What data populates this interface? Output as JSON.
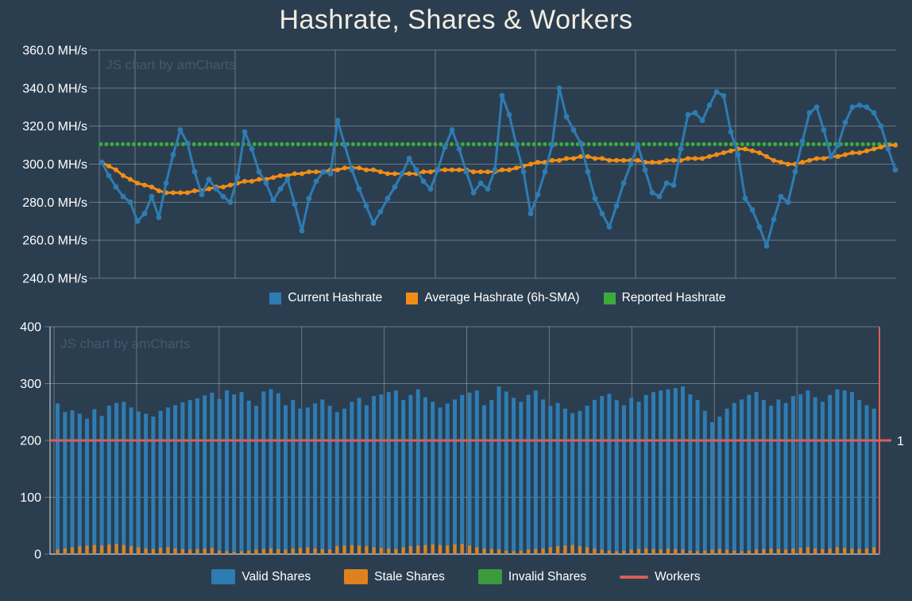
{
  "page": {
    "title": "Hashrate, Shares & Workers",
    "background_color": "#2b3e50",
    "title_color": "#f2ede1"
  },
  "colors": {
    "blue": "#2e7cb2",
    "orange_line": "#f28d15",
    "orange_bar": "#e0811f",
    "green": "#3cab3c",
    "red": "#d95f57",
    "grid": "rgba(255,255,255,0.30)",
    "axis_line": "rgba(255,255,255,0.55)",
    "axis_text": "#ffffff",
    "watermark": "#46586b"
  },
  "chart_data": [
    {
      "id": "hashrate",
      "type": "line",
      "watermark": "JS chart by amCharts",
      "y_axis": {
        "unit": "MH/s",
        "min": 240,
        "max": 360,
        "tick_step": 20,
        "tick_labels": [
          "360.0 MH/s",
          "340.0 MH/s",
          "320.0 MH/s",
          "300.0 MH/s",
          "280.0 MH/s",
          "260.0 MH/s",
          "240.0 MH/s"
        ]
      },
      "x_count": 112,
      "grid": "on",
      "legend_position": "bottom",
      "series": [
        {
          "name": "Current Hashrate",
          "color": "#2e7cb2",
          "style": "line-with-markers",
          "values": [
            301,
            294,
            288,
            283,
            280,
            270,
            274,
            283,
            272,
            290,
            305,
            318,
            311,
            296,
            284,
            292,
            287,
            283,
            280,
            293,
            317,
            308,
            296,
            290,
            281,
            287,
            292,
            279,
            265,
            282,
            291,
            296,
            295,
            323,
            310,
            297,
            287,
            278,
            269,
            275,
            282,
            288,
            295,
            303,
            297,
            291,
            287,
            297,
            309,
            318,
            308,
            296,
            285,
            290,
            287,
            297,
            336,
            326,
            310,
            296,
            274,
            284,
            296,
            310,
            340,
            325,
            318,
            311,
            296,
            282,
            274,
            267,
            278,
            290,
            300,
            310,
            297,
            285,
            283,
            290,
            289,
            308,
            326,
            327,
            323,
            331,
            338,
            336,
            317,
            305,
            282,
            276,
            267,
            257,
            271,
            283,
            280,
            296,
            312,
            327,
            330,
            318,
            304,
            310,
            322,
            330,
            331,
            330,
            327,
            320,
            308,
            297
          ]
        },
        {
          "name": "Average Hashrate (6h-SMA)",
          "color": "#f28d15",
          "style": "line-with-markers",
          "values": [
            301,
            299,
            297,
            294,
            292,
            290,
            289,
            288,
            286,
            285,
            285,
            285,
            285,
            286,
            286,
            287,
            288,
            288,
            289,
            290,
            291,
            291,
            292,
            292,
            293,
            294,
            294,
            295,
            295,
            296,
            296,
            296,
            297,
            297,
            298,
            298,
            298,
            297,
            297,
            296,
            295,
            295,
            295,
            295,
            295,
            296,
            296,
            297,
            297,
            297,
            297,
            297,
            296,
            296,
            296,
            296,
            297,
            297,
            298,
            299,
            300,
            301,
            301,
            302,
            302,
            303,
            303,
            304,
            304,
            303,
            303,
            302,
            302,
            302,
            302,
            302,
            301,
            301,
            301,
            302,
            302,
            302,
            303,
            303,
            303,
            304,
            305,
            306,
            307,
            308,
            308,
            307,
            306,
            304,
            302,
            301,
            300,
            300,
            301,
            302,
            303,
            303,
            304,
            304,
            305,
            306,
            306,
            307,
            308,
            309,
            310,
            310
          ]
        },
        {
          "name": "Reported Hashrate",
          "color": "#3cab3c",
          "style": "dotted",
          "constant": 310.5
        }
      ]
    },
    {
      "id": "shares",
      "type": "bar",
      "watermark": "JS chart by amCharts",
      "y_axis_left": {
        "min": 0,
        "max": 400,
        "tick_labels": [
          "400",
          "300",
          "200",
          "100",
          "0"
        ]
      },
      "y_axis_right": {
        "color": "#d95f57",
        "tick_labels": [
          "1"
        ],
        "tick_value_on_left_scale": 200
      },
      "x_count": 112,
      "grid": "on",
      "legend_position": "bottom",
      "series": [
        {
          "name": "Valid Shares",
          "color": "#2e7cb2",
          "style": "bar",
          "values": [
            265,
            250,
            253,
            247,
            238,
            255,
            243,
            261,
            266,
            268,
            258,
            251,
            247,
            242,
            252,
            258,
            262,
            267,
            271,
            274,
            279,
            284,
            273,
            288,
            281,
            285,
            270,
            261,
            286,
            290,
            283,
            262,
            271,
            256,
            258,
            265,
            272,
            261,
            250,
            256,
            268,
            275,
            262,
            278,
            281,
            285,
            288,
            271,
            280,
            290,
            276,
            268,
            258,
            265,
            272,
            280,
            284,
            288,
            262,
            271,
            295,
            286,
            275,
            268,
            280,
            288,
            272,
            261,
            266,
            256,
            248,
            252,
            261,
            271,
            278,
            282,
            271,
            262,
            275,
            268,
            280,
            285,
            288,
            290,
            292,
            295,
            281,
            271,
            252,
            232,
            242,
            256,
            266,
            272,
            280,
            285,
            271,
            261,
            272,
            266,
            278,
            281,
            288,
            276,
            268,
            280,
            290,
            288,
            285,
            271,
            262,
            256
          ]
        },
        {
          "name": "Stale Shares",
          "color": "#e0811f",
          "style": "bar",
          "values": [
            8,
            10,
            12,
            14,
            15,
            16,
            15,
            17,
            18,
            16,
            14,
            12,
            10,
            9,
            11,
            12,
            10,
            9,
            8,
            9,
            10,
            11,
            6,
            5,
            4,
            5,
            6,
            8,
            9,
            10,
            9,
            8,
            10,
            11,
            12,
            10,
            9,
            8,
            14,
            15,
            16,
            15,
            14,
            12,
            11,
            10,
            9,
            12,
            14,
            15,
            16,
            17,
            16,
            15,
            17,
            18,
            15,
            12,
            10,
            9,
            8,
            6,
            5,
            6,
            8,
            9,
            10,
            12,
            14,
            15,
            16,
            14,
            12,
            10,
            8,
            6,
            5,
            6,
            8,
            9,
            10,
            9,
            8,
            10,
            9,
            8,
            6,
            5,
            6,
            8,
            9,
            8,
            6,
            5,
            6,
            8,
            9,
            10,
            9,
            8,
            10,
            11,
            12,
            10,
            9,
            10,
            12,
            11,
            10,
            9,
            10,
            12
          ]
        },
        {
          "name": "Invalid Shares",
          "color": "#3b9a3b",
          "style": "bar",
          "constant": 0
        },
        {
          "name": "Workers",
          "color": "#d95f57",
          "style": "line",
          "constant": 1,
          "value_on_left_scale": 200
        }
      ]
    }
  ]
}
